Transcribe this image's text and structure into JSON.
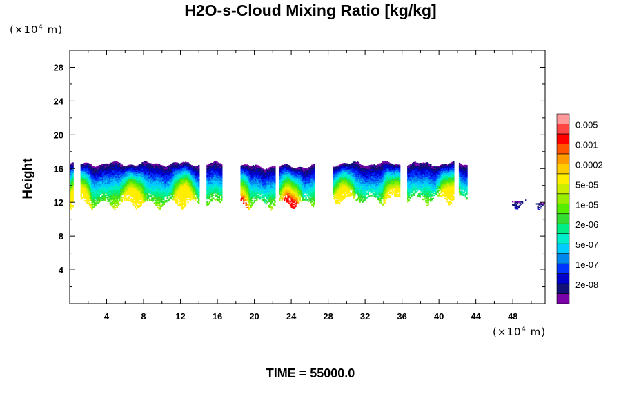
{
  "chart_data": {
    "type": "heatmap",
    "title": "H2O-s-Cloud Mixing Ratio [kg/kg]",
    "ylabel": "Height",
    "x_unit": {
      "prefix": "(×10",
      "exp": "4",
      "suffix": " m)"
    },
    "y_unit": {
      "prefix": "(×10",
      "exp": "4",
      "suffix": " m)"
    },
    "xlim": [
      0,
      51.5
    ],
    "ylim": [
      0,
      30
    ],
    "x_ticks": [
      4,
      8,
      12,
      16,
      20,
      24,
      28,
      32,
      36,
      40,
      44,
      48
    ],
    "y_ticks": [
      4,
      8,
      12,
      16,
      20,
      24,
      28
    ],
    "colorbar": {
      "levels_bottom_to_top": [
        {
          "color": "#7a00a8",
          "label": ""
        },
        {
          "color": "#111177",
          "label": "2e-08"
        },
        {
          "color": "#0000cc",
          "label": ""
        },
        {
          "color": "#0033ff",
          "label": "1e-07"
        },
        {
          "color": "#0088ee",
          "label": ""
        },
        {
          "color": "#00ccff",
          "label": "5e-07"
        },
        {
          "color": "#00eecc",
          "label": ""
        },
        {
          "color": "#00ee88",
          "label": "2e-06"
        },
        {
          "color": "#33dd33",
          "label": ""
        },
        {
          "color": "#55ee00",
          "label": "1e-05"
        },
        {
          "color": "#99ee00",
          "label": ""
        },
        {
          "color": "#ccee00",
          "label": "5e-05"
        },
        {
          "color": "#ffee00",
          "label": ""
        },
        {
          "color": "#ffcc00",
          "label": "0.0002"
        },
        {
          "color": "#ff9900",
          "label": ""
        },
        {
          "color": "#ff5500",
          "label": "0.001"
        },
        {
          "color": "#ff0000",
          "label": ""
        },
        {
          "color": "#ff4444",
          "label": "0.005"
        },
        {
          "color": "#ff9999",
          "label": ""
        }
      ]
    },
    "cloud_regions": [
      {
        "x0": 0.0,
        "x1": 16.5,
        "base": 11.0,
        "top": 16.5,
        "max_level": 12
      },
      {
        "x0": 18.5,
        "x1": 26.5,
        "base": 11.0,
        "top": 16.2,
        "max_level": 16
      },
      {
        "x0": 28.5,
        "x1": 43.0,
        "base": 11.5,
        "top": 16.5,
        "max_level": 12
      },
      {
        "x0": 47.0,
        "x1": 51.5,
        "base": 11.0,
        "top": 12.0,
        "max_level": 12
      }
    ],
    "grid": false
  },
  "footer": {
    "time_label": "TIME = 55000.0"
  }
}
